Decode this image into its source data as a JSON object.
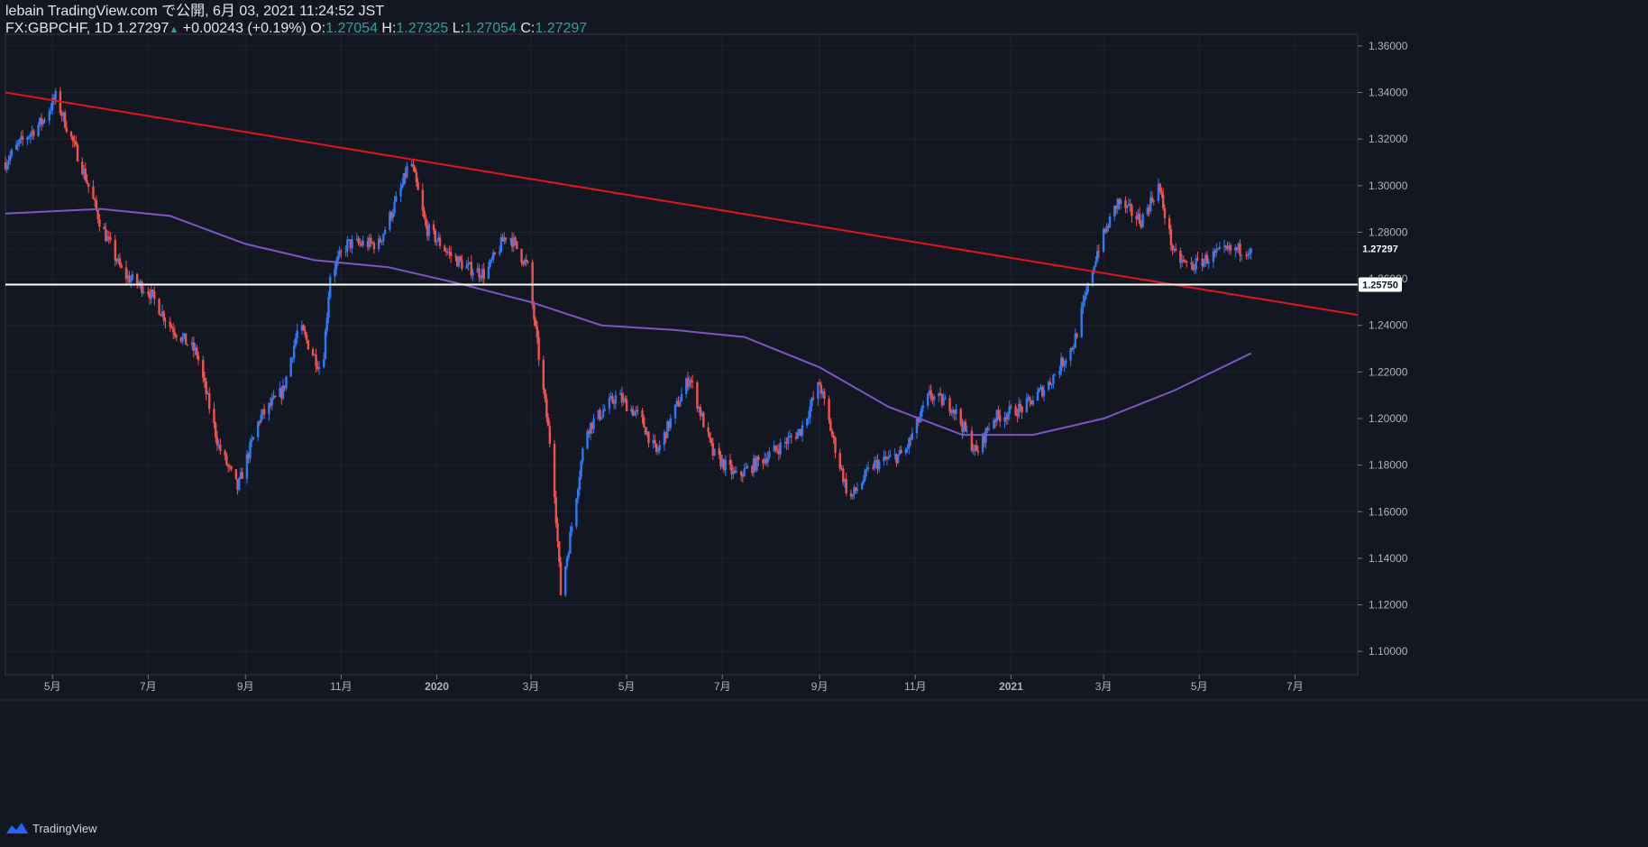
{
  "header": {
    "author_line": "lebain TradingView.com で公開, 6月 03, 2021 11:24:52 JST",
    "symbol": "FX:GBPCHF, 1D",
    "price": "1.27297",
    "change": "+0.00243 (+0.19%)",
    "o_label": "O:",
    "o_value": "1.27054",
    "h_label": "H:",
    "h_value": "1.27325",
    "l_label": "L:",
    "l_value": "1.27054",
    "c_label": "C:",
    "c_value": "1.27297"
  },
  "footer": {
    "brand": "TradingView"
  },
  "colors": {
    "background": "#131722",
    "up_candle": "#3179f5",
    "down_candle": "#ef5350",
    "trendline": "#e0161e",
    "moving_average": "#7e57c2",
    "horizontal_line": "#ffffff",
    "grid": "#1e2230"
  },
  "chart_data": {
    "type": "candlestick",
    "symbol": "FX:GBPCHF",
    "timeframe": "1D",
    "ylim": [
      1.09,
      1.365
    ],
    "yticks": [
      "1.36000",
      "1.34000",
      "1.32000",
      "1.30000",
      "1.28000",
      "1.26000",
      "1.24000",
      "1.22000",
      "1.20000",
      "1.18000",
      "1.16000",
      "1.14000",
      "1.12000",
      "1.10000"
    ],
    "xticks": [
      "5月",
      "7月",
      "9月",
      "11月",
      "2020",
      "3月",
      "5月",
      "7月",
      "9月",
      "11月",
      "2021",
      "3月",
      "5月",
      "7月"
    ],
    "current_price_label": "1.27297",
    "horizontal_line": {
      "price": 1.2575,
      "label": "1.25750"
    },
    "trendline": {
      "from": {
        "date": "2019-04",
        "price": 1.34
      },
      "to": {
        "date": "2021-07",
        "price": 1.2445
      }
    },
    "approx_close_path": [
      {
        "date": "2019-04-01",
        "close": 1.31
      },
      {
        "date": "2019-04-10",
        "close": 1.318
      },
      {
        "date": "2019-04-25",
        "close": 1.328
      },
      {
        "date": "2019-05-03",
        "close": 1.338
      },
      {
        "date": "2019-05-20",
        "close": 1.308
      },
      {
        "date": "2019-06-01",
        "close": 1.283
      },
      {
        "date": "2019-06-15",
        "close": 1.262
      },
      {
        "date": "2019-07-01",
        "close": 1.255
      },
      {
        "date": "2019-07-15",
        "close": 1.24
      },
      {
        "date": "2019-08-01",
        "close": 1.228
      },
      {
        "date": "2019-08-15",
        "close": 1.188
      },
      {
        "date": "2019-08-27",
        "close": 1.17
      },
      {
        "date": "2019-09-10",
        "close": 1.2
      },
      {
        "date": "2019-09-25",
        "close": 1.212
      },
      {
        "date": "2019-10-05",
        "close": 1.24
      },
      {
        "date": "2019-10-20",
        "close": 1.22
      },
      {
        "date": "2019-10-25",
        "close": 1.262
      },
      {
        "date": "2019-11-05",
        "close": 1.275
      },
      {
        "date": "2019-11-25",
        "close": 1.275
      },
      {
        "date": "2019-12-10",
        "close": 1.3
      },
      {
        "date": "2019-12-15",
        "close": 1.312
      },
      {
        "date": "2019-12-25",
        "close": 1.282
      },
      {
        "date": "2020-01-10",
        "close": 1.27
      },
      {
        "date": "2020-01-20",
        "close": 1.265
      },
      {
        "date": "2020-02-01",
        "close": 1.262
      },
      {
        "date": "2020-02-15",
        "close": 1.28
      },
      {
        "date": "2020-02-28",
        "close": 1.265
      },
      {
        "date": "2020-03-05",
        "close": 1.232
      },
      {
        "date": "2020-03-15",
        "close": 1.18
      },
      {
        "date": "2020-03-20",
        "close": 1.125
      },
      {
        "date": "2020-03-25",
        "close": 1.145
      },
      {
        "date": "2020-04-05",
        "close": 1.195
      },
      {
        "date": "2020-04-25",
        "close": 1.21
      },
      {
        "date": "2020-05-10",
        "close": 1.2
      },
      {
        "date": "2020-05-20",
        "close": 1.185
      },
      {
        "date": "2020-06-10",
        "close": 1.218
      },
      {
        "date": "2020-06-25",
        "close": 1.185
      },
      {
        "date": "2020-07-10",
        "close": 1.175
      },
      {
        "date": "2020-08-01",
        "close": 1.185
      },
      {
        "date": "2020-08-20",
        "close": 1.195
      },
      {
        "date": "2020-09-01",
        "close": 1.215
      },
      {
        "date": "2020-09-10",
        "close": 1.19
      },
      {
        "date": "2020-09-20",
        "close": 1.165
      },
      {
        "date": "2020-10-05",
        "close": 1.18
      },
      {
        "date": "2020-10-25",
        "close": 1.185
      },
      {
        "date": "2020-11-10",
        "close": 1.21
      },
      {
        "date": "2020-11-25",
        "close": 1.205
      },
      {
        "date": "2020-12-10",
        "close": 1.185
      },
      {
        "date": "2020-12-20",
        "close": 1.2
      },
      {
        "date": "2021-01-10",
        "close": 1.205
      },
      {
        "date": "2021-01-25",
        "close": 1.215
      },
      {
        "date": "2021-02-10",
        "close": 1.232
      },
      {
        "date": "2021-02-25",
        "close": 1.272
      },
      {
        "date": "2021-03-10",
        "close": 1.293
      },
      {
        "date": "2021-03-25",
        "close": 1.285
      },
      {
        "date": "2021-04-05",
        "close": 1.3
      },
      {
        "date": "2021-04-15",
        "close": 1.27
      },
      {
        "date": "2021-04-25",
        "close": 1.265
      },
      {
        "date": "2021-05-10",
        "close": 1.27
      },
      {
        "date": "2021-05-20",
        "close": 1.272
      },
      {
        "date": "2021-06-03",
        "close": 1.27297
      }
    ],
    "moving_average": [
      {
        "date": "2019-04-01",
        "value": 1.288
      },
      {
        "date": "2019-06-01",
        "value": 1.29
      },
      {
        "date": "2019-07-15",
        "value": 1.287
      },
      {
        "date": "2019-09-01",
        "value": 1.275
      },
      {
        "date": "2019-10-15",
        "value": 1.268
      },
      {
        "date": "2019-12-01",
        "value": 1.265
      },
      {
        "date": "2020-01-15",
        "value": 1.258
      },
      {
        "date": "2020-03-01",
        "value": 1.25
      },
      {
        "date": "2020-04-15",
        "value": 1.24
      },
      {
        "date": "2020-06-01",
        "value": 1.238
      },
      {
        "date": "2020-07-15",
        "value": 1.235
      },
      {
        "date": "2020-09-01",
        "value": 1.222
      },
      {
        "date": "2020-10-15",
        "value": 1.205
      },
      {
        "date": "2020-12-01",
        "value": 1.193
      },
      {
        "date": "2021-01-15",
        "value": 1.193
      },
      {
        "date": "2021-03-01",
        "value": 1.2
      },
      {
        "date": "2021-04-15",
        "value": 1.212
      },
      {
        "date": "2021-06-03",
        "value": 1.228
      }
    ]
  }
}
